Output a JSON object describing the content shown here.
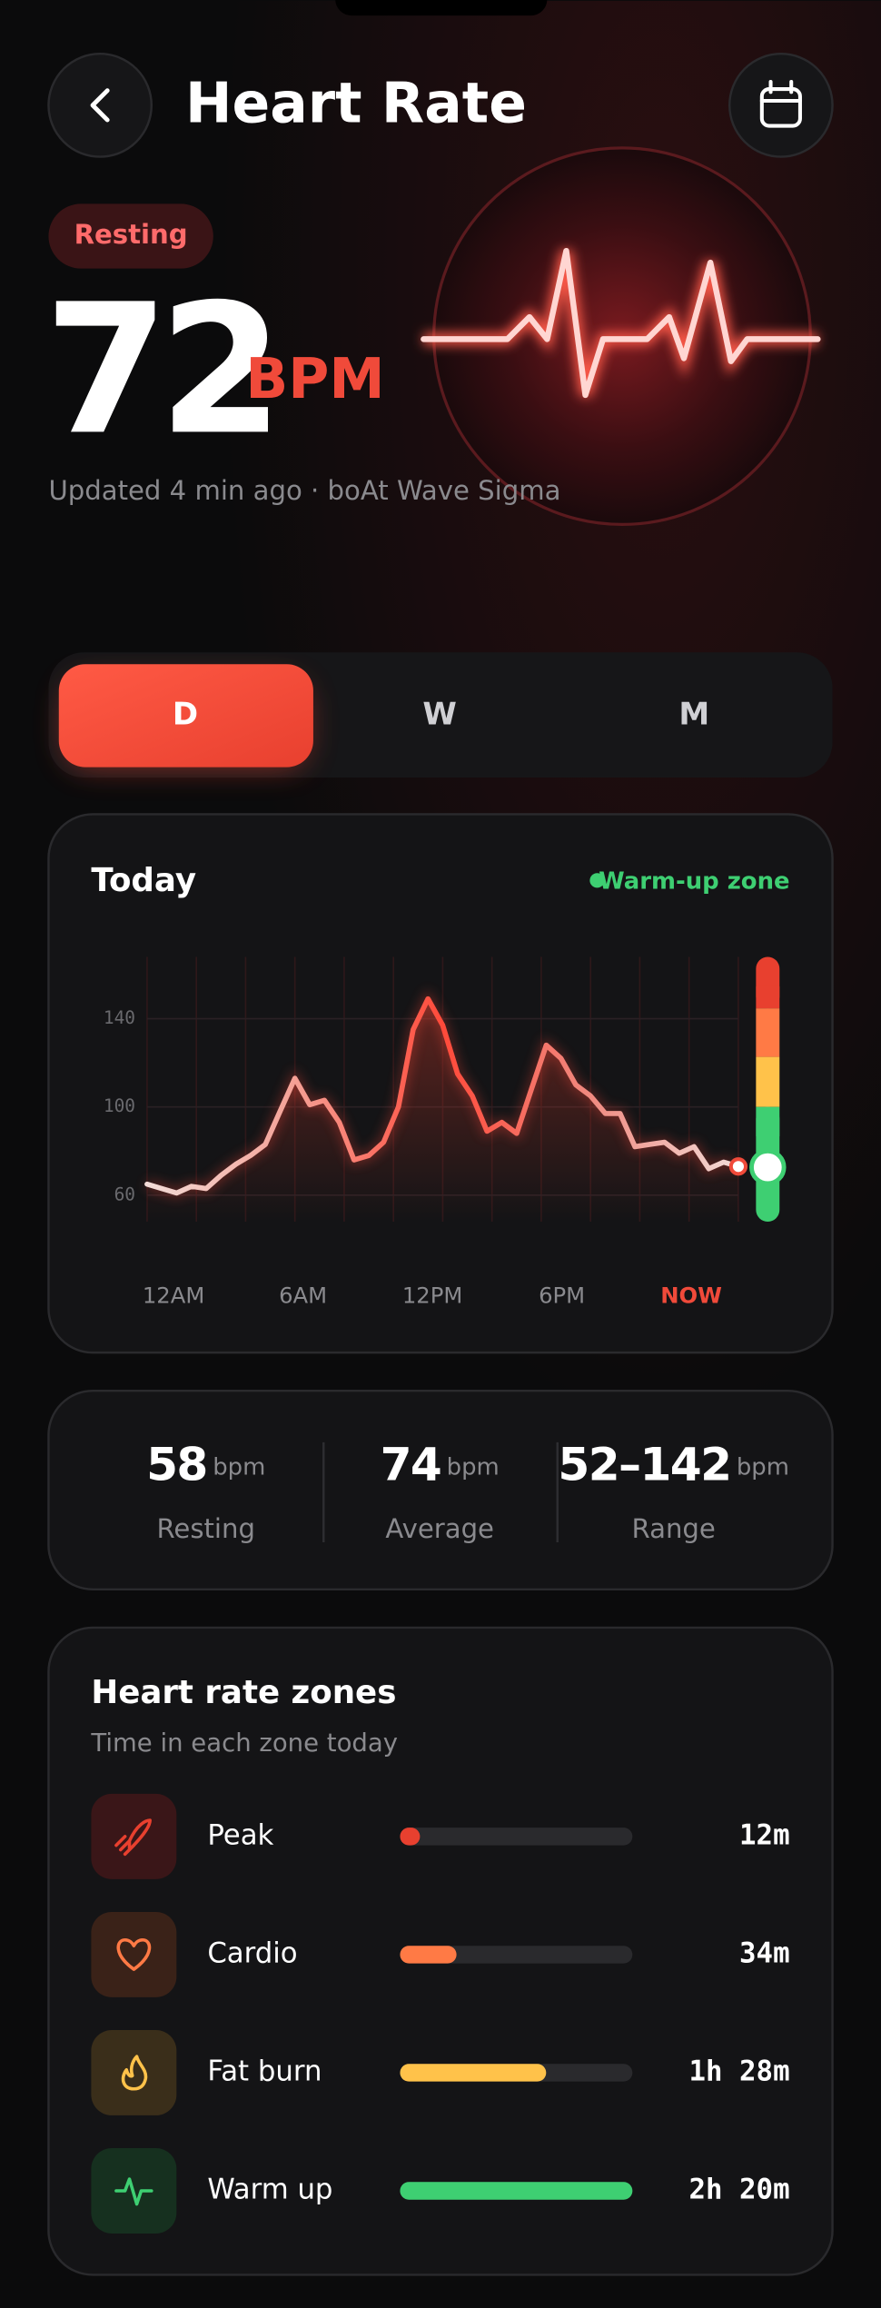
{
  "header": {
    "title": "Heart Rate"
  },
  "current": {
    "badge": "Resting",
    "value": 72,
    "unit": "BPM",
    "updated": "Updated 4 min ago · boAt Wave Sigma"
  },
  "tabs": [
    "D",
    "W",
    "M"
  ],
  "chart_data": {
    "type": "line",
    "title": "Today",
    "zone_label": "Warm-up zone",
    "values": [
      65,
      63,
      61,
      64,
      63,
      69,
      74,
      78,
      83,
      98,
      113,
      101,
      103,
      93,
      76,
      78,
      84,
      100,
      135,
      149,
      137,
      115,
      105,
      89,
      93,
      88,
      108,
      128,
      122,
      110,
      105,
      97,
      97,
      82,
      83,
      84,
      79,
      82,
      72,
      75,
      73
    ],
    "x_labels": [
      "12AM",
      "6AM",
      "12PM",
      "6PM",
      "NOW"
    ],
    "ylim": [
      48,
      168
    ],
    "yticks": [
      60,
      100,
      140
    ],
    "grid": true
  },
  "stats": {
    "items": [
      {
        "value": 58,
        "unit": "bpm",
        "label": "Resting"
      },
      {
        "value": 74,
        "unit": "bpm",
        "label": "Average"
      },
      {
        "value": "52–142",
        "unit": "bpm",
        "label": "Range"
      }
    ]
  },
  "zones": {
    "title": "Heart rate zones",
    "subtitle": "Time in each zone today",
    "items": [
      {
        "name": "Peak",
        "minutes": 12,
        "label": "12m",
        "color": "#e8402f"
      },
      {
        "name": "Cardio",
        "minutes": 34,
        "label": "34m",
        "color": "#ff7a45"
      },
      {
        "name": "Fat burn",
        "minutes": 88,
        "label": "1h 28m",
        "color": "#ffc24a"
      },
      {
        "name": "Warm up",
        "minutes": 140,
        "label": "2h 20m",
        "color": "#3ecf72"
      }
    ]
  }
}
